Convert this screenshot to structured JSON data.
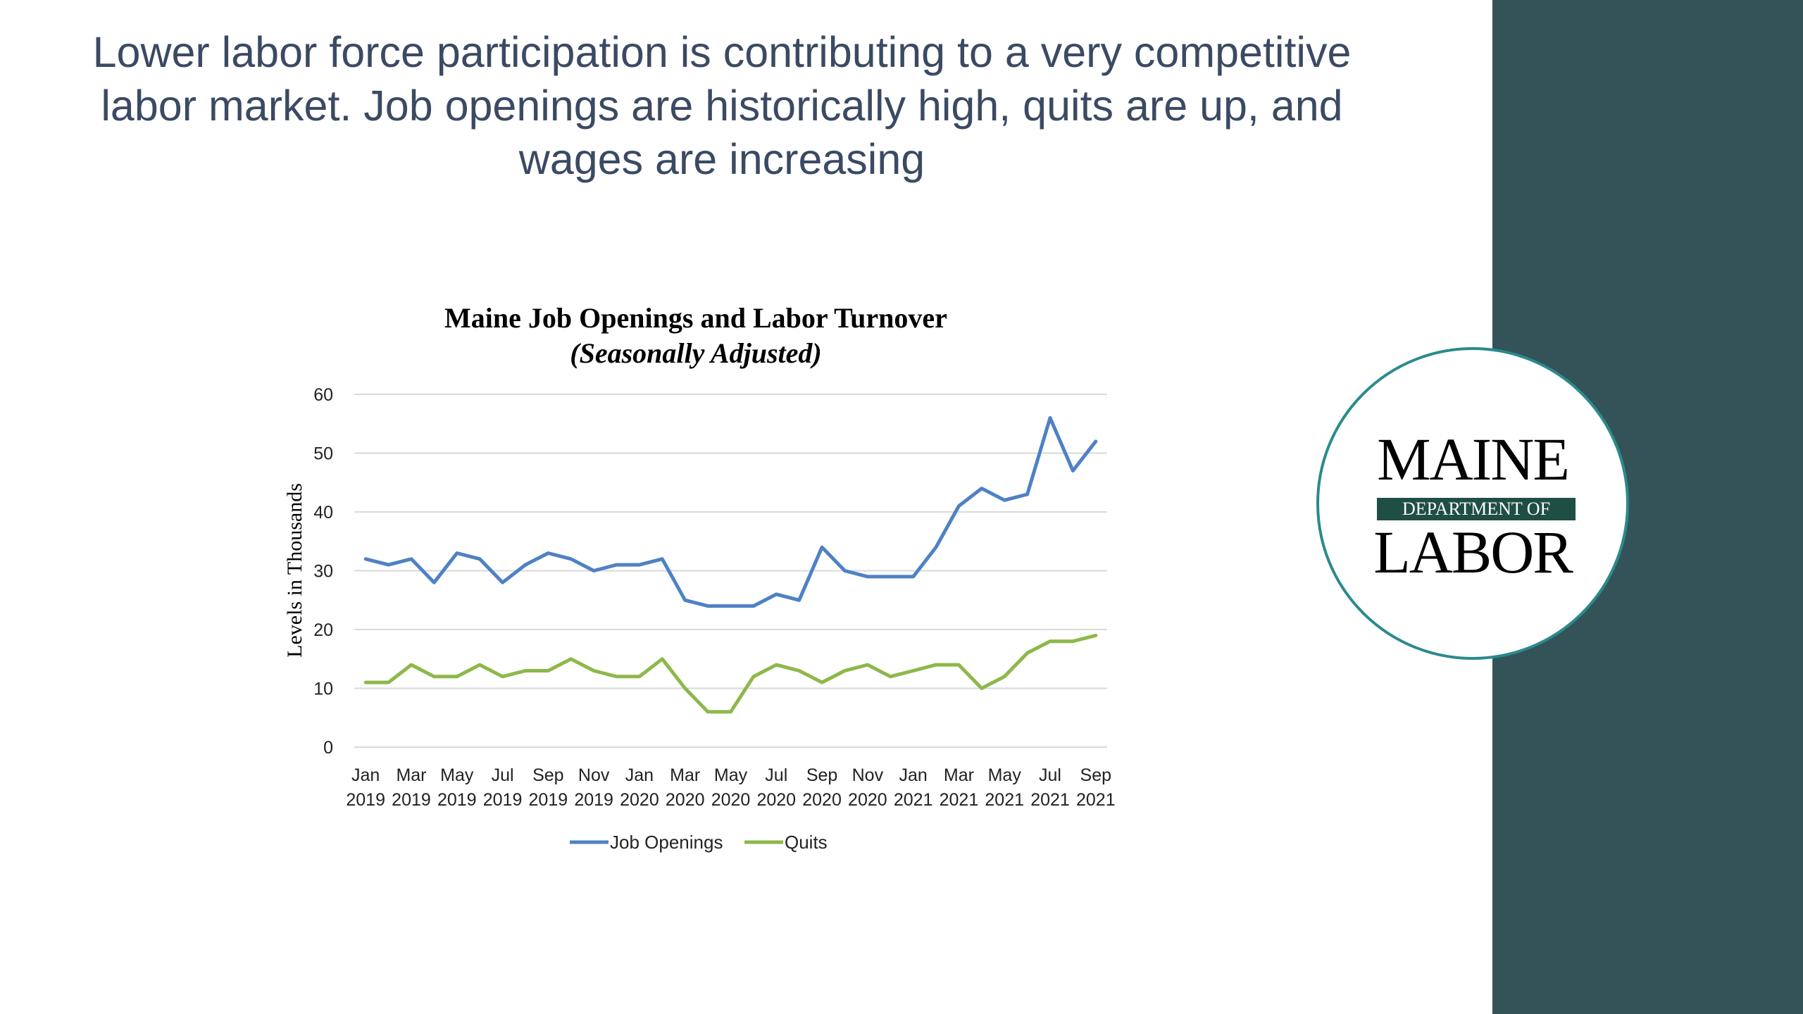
{
  "slide": {
    "headline": "Lower labor force participation is contributing to a very competitive labor market. Job openings are historically high, quits are up, and wages are increasing"
  },
  "logo": {
    "line1": "MAINE",
    "band": "DEPARTMENT OF",
    "line2": "LABOR"
  },
  "colors": {
    "sidebar": "#335358",
    "headline": "#3b4a63",
    "job_openings": "#4f81c4",
    "quits": "#8db84a",
    "gridline": "#d9d9d9",
    "logo_ring": "#2b8a8c",
    "logo_band": "#1f4e45"
  },
  "chart_data": {
    "type": "line",
    "title": "Maine Job Openings and Labor Turnover",
    "subtitle": "(Seasonally Adjusted)",
    "ylabel": "Levels in Thousands",
    "xlabel": "",
    "ylim": [
      0,
      60
    ],
    "yticks": [
      0,
      10,
      20,
      30,
      40,
      50,
      60
    ],
    "grid": true,
    "legend_position": "bottom",
    "x": [
      "Jan 2019",
      "Feb 2019",
      "Mar 2019",
      "Apr 2019",
      "May 2019",
      "Jun 2019",
      "Jul 2019",
      "Aug 2019",
      "Sep 2019",
      "Oct 2019",
      "Nov 2019",
      "Dec 2019",
      "Jan 2020",
      "Feb 2020",
      "Mar 2020",
      "Apr 2020",
      "May 2020",
      "Jun 2020",
      "Jul 2020",
      "Aug 2020",
      "Sep 2020",
      "Oct 2020",
      "Nov 2020",
      "Dec 2020",
      "Jan 2021",
      "Feb 2021",
      "Mar 2021",
      "Apr 2021",
      "May 2021",
      "Jun 2021",
      "Jul 2021",
      "Aug 2021",
      "Sep 2021"
    ],
    "x_tick_labels": [
      {
        "index": 0,
        "line1": "Jan",
        "line2": "2019"
      },
      {
        "index": 2,
        "line1": "Mar",
        "line2": "2019"
      },
      {
        "index": 4,
        "line1": "May",
        "line2": "2019"
      },
      {
        "index": 6,
        "line1": "Jul",
        "line2": "2019"
      },
      {
        "index": 8,
        "line1": "Sep",
        "line2": "2019"
      },
      {
        "index": 10,
        "line1": "Nov",
        "line2": "2019"
      },
      {
        "index": 12,
        "line1": "Jan",
        "line2": "2020"
      },
      {
        "index": 14,
        "line1": "Mar",
        "line2": "2020"
      },
      {
        "index": 16,
        "line1": "May",
        "line2": "2020"
      },
      {
        "index": 18,
        "line1": "Jul",
        "line2": "2020"
      },
      {
        "index": 20,
        "line1": "Sep",
        "line2": "2020"
      },
      {
        "index": 22,
        "line1": "Nov",
        "line2": "2020"
      },
      {
        "index": 24,
        "line1": "Jan",
        "line2": "2021"
      },
      {
        "index": 26,
        "line1": "Mar",
        "line2": "2021"
      },
      {
        "index": 28,
        "line1": "May",
        "line2": "2021"
      },
      {
        "index": 30,
        "line1": "Jul",
        "line2": "2021"
      },
      {
        "index": 32,
        "line1": "Sep",
        "line2": "2021"
      }
    ],
    "series": [
      {
        "name": "Job Openings",
        "color": "#4f81c4",
        "values": [
          32,
          31,
          32,
          28,
          33,
          32,
          28,
          31,
          33,
          32,
          30,
          31,
          31,
          32,
          25,
          24,
          24,
          24,
          26,
          25,
          34,
          30,
          29,
          29,
          29,
          34,
          41,
          44,
          42,
          43,
          56,
          47,
          52
        ]
      },
      {
        "name": "Quits",
        "color": "#8db84a",
        "values": [
          11,
          11,
          14,
          12,
          12,
          14,
          12,
          13,
          13,
          15,
          13,
          12,
          12,
          15,
          10,
          6,
          6,
          12,
          14,
          13,
          11,
          13,
          14,
          12,
          13,
          14,
          14,
          10,
          12,
          16,
          18,
          18,
          19
        ]
      }
    ]
  }
}
